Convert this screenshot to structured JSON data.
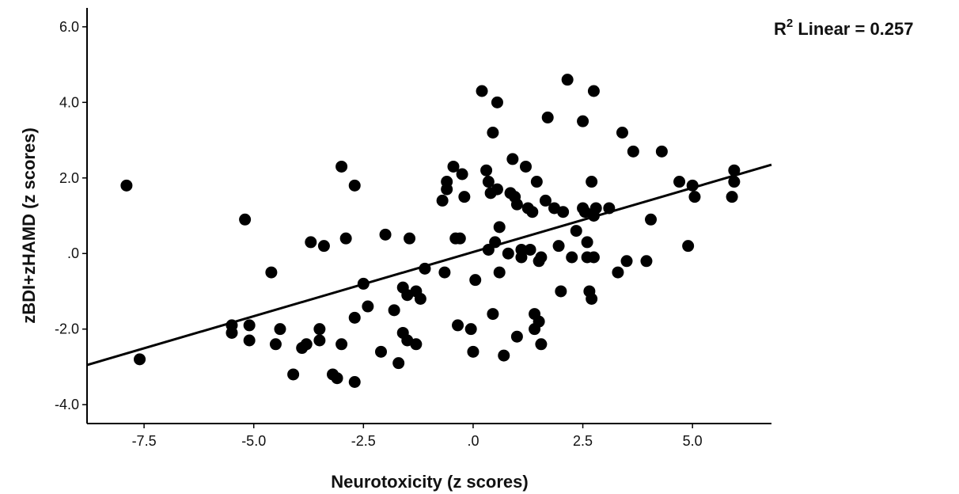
{
  "chart_data": {
    "type": "scatter",
    "xlabel": "Neurotoxicity (z scores)",
    "ylabel": "zBDI+zHAMD (z scores)",
    "xlim": [
      -8.8,
      6.8
    ],
    "ylim": [
      -4.5,
      6.5
    ],
    "x_ticks": [
      -7.5,
      -5.0,
      -2.5,
      0.0,
      2.5,
      5.0
    ],
    "x_tick_labels": [
      "-7.5",
      "-5.0",
      "-2.5",
      ".0",
      "2.5",
      "5.0"
    ],
    "y_ticks": [
      -4.0,
      -2.0,
      0.0,
      2.0,
      4.0,
      6.0
    ],
    "y_tick_labels": [
      "-4.0",
      "-2.0",
      ".0",
      "2.0",
      "4.0",
      "6.0"
    ],
    "annotation": {
      "prefix": "R",
      "superscript": "2",
      "text": " Linear = 0.257"
    },
    "fit_line": {
      "x": [
        -8.8,
        6.8
      ],
      "y": [
        -2.95,
        2.35
      ]
    },
    "colors": {
      "points": "#000000",
      "line": "#000000",
      "axis": "#000000"
    },
    "grid": false,
    "series": [
      {
        "points": [
          [
            -7.9,
            1.8
          ],
          [
            -7.6,
            -2.8
          ],
          [
            -5.2,
            0.9
          ],
          [
            -5.5,
            -1.9
          ],
          [
            -5.5,
            -2.1
          ],
          [
            -5.1,
            -1.9
          ],
          [
            -5.1,
            -2.3
          ],
          [
            -4.6,
            -0.5
          ],
          [
            -4.4,
            -2.0
          ],
          [
            -4.5,
            -2.4
          ],
          [
            -4.1,
            -3.2
          ],
          [
            -3.9,
            -2.5
          ],
          [
            -3.8,
            -2.4
          ],
          [
            -3.7,
            0.3
          ],
          [
            -3.5,
            -2.0
          ],
          [
            -3.5,
            -2.3
          ],
          [
            -3.4,
            0.2
          ],
          [
            -3.2,
            -3.2
          ],
          [
            -3.1,
            -3.3
          ],
          [
            -3.0,
            2.3
          ],
          [
            -3.0,
            -2.4
          ],
          [
            -2.9,
            0.4
          ],
          [
            -2.7,
            1.8
          ],
          [
            -2.7,
            -1.7
          ],
          [
            -2.7,
            -3.4
          ],
          [
            -2.5,
            -0.8
          ],
          [
            -2.4,
            -1.4
          ],
          [
            -2.1,
            -2.6
          ],
          [
            -2.0,
            0.5
          ],
          [
            -1.8,
            -1.5
          ],
          [
            -1.7,
            -2.9
          ],
          [
            -1.6,
            -2.1
          ],
          [
            -1.6,
            -0.9
          ],
          [
            -1.5,
            -1.1
          ],
          [
            -1.5,
            -2.3
          ],
          [
            -1.45,
            0.4
          ],
          [
            -1.3,
            -1.0
          ],
          [
            -1.3,
            -2.4
          ],
          [
            -1.2,
            -1.2
          ],
          [
            -1.1,
            -0.4
          ],
          [
            -0.7,
            1.4
          ],
          [
            -0.65,
            -0.5
          ],
          [
            -0.6,
            1.9
          ],
          [
            -0.6,
            1.7
          ],
          [
            -0.45,
            2.3
          ],
          [
            -0.4,
            0.4
          ],
          [
            -0.35,
            -1.9
          ],
          [
            -0.3,
            0.4
          ],
          [
            -0.25,
            2.1
          ],
          [
            -0.2,
            1.5
          ],
          [
            -0.05,
            -2.0
          ],
          [
            0.0,
            -2.6
          ],
          [
            0.05,
            -0.7
          ],
          [
            0.2,
            4.3
          ],
          [
            0.3,
            2.2
          ],
          [
            0.35,
            1.9
          ],
          [
            0.35,
            0.1
          ],
          [
            0.4,
            1.6
          ],
          [
            0.45,
            3.2
          ],
          [
            0.45,
            -1.6
          ],
          [
            0.5,
            0.3
          ],
          [
            0.55,
            4.0
          ],
          [
            0.55,
            1.7
          ],
          [
            0.6,
            0.7
          ],
          [
            0.6,
            -0.5
          ],
          [
            0.7,
            -2.7
          ],
          [
            0.8,
            0.0
          ],
          [
            0.85,
            1.6
          ],
          [
            0.9,
            2.5
          ],
          [
            0.95,
            1.5
          ],
          [
            1.0,
            1.3
          ],
          [
            1.0,
            -2.2
          ],
          [
            1.1,
            0.1
          ],
          [
            1.1,
            -0.1
          ],
          [
            1.2,
            2.3
          ],
          [
            1.25,
            1.2
          ],
          [
            1.3,
            0.1
          ],
          [
            1.35,
            1.1
          ],
          [
            1.4,
            -1.6
          ],
          [
            1.4,
            -2.0
          ],
          [
            1.45,
            1.9
          ],
          [
            1.5,
            -0.2
          ],
          [
            1.5,
            -1.8
          ],
          [
            1.55,
            -0.1
          ],
          [
            1.55,
            -2.4
          ],
          [
            1.65,
            1.4
          ],
          [
            1.7,
            3.6
          ],
          [
            1.85,
            1.2
          ],
          [
            1.95,
            0.2
          ],
          [
            2.0,
            -1.0
          ],
          [
            2.05,
            1.1
          ],
          [
            2.15,
            4.6
          ],
          [
            2.25,
            -0.1
          ],
          [
            2.35,
            0.6
          ],
          [
            2.5,
            1.2
          ],
          [
            2.5,
            3.5
          ],
          [
            2.55,
            1.1
          ],
          [
            2.6,
            0.3
          ],
          [
            2.6,
            -0.1
          ],
          [
            2.65,
            -1.0
          ],
          [
            2.7,
            -1.2
          ],
          [
            2.7,
            1.9
          ],
          [
            2.75,
            1.0
          ],
          [
            2.75,
            -0.1
          ],
          [
            2.75,
            4.3
          ],
          [
            2.8,
            1.2
          ],
          [
            3.1,
            1.2
          ],
          [
            3.3,
            -0.5
          ],
          [
            3.4,
            3.2
          ],
          [
            3.5,
            -0.2
          ],
          [
            3.65,
            2.7
          ],
          [
            3.95,
            -0.2
          ],
          [
            4.05,
            0.9
          ],
          [
            4.3,
            2.7
          ],
          [
            4.7,
            1.9
          ],
          [
            4.9,
            0.2
          ],
          [
            5.0,
            1.8
          ],
          [
            5.05,
            1.5
          ],
          [
            5.9,
            1.5
          ],
          [
            5.95,
            2.2
          ],
          [
            5.95,
            1.9
          ]
        ]
      }
    ]
  }
}
